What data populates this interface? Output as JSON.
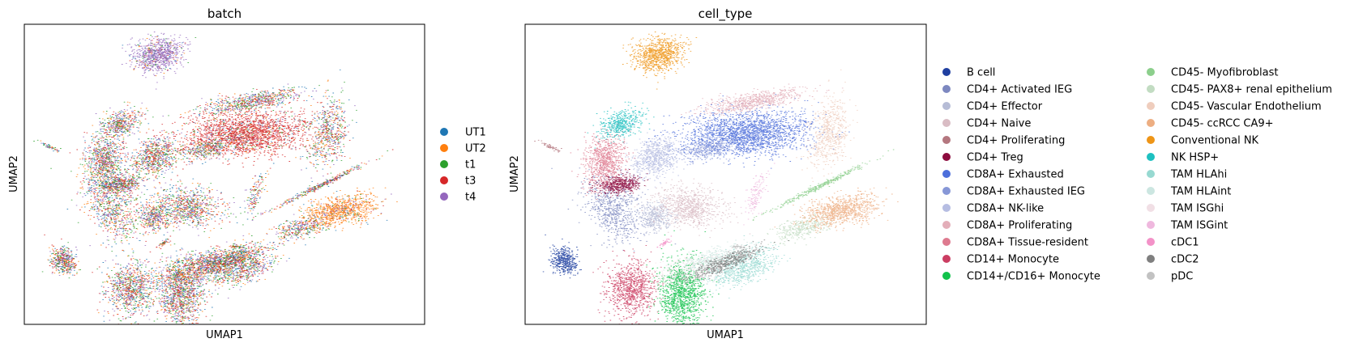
{
  "chart_data": [
    {
      "type": "scatter",
      "title": "batch",
      "xlabel": "UMAP1",
      "ylabel": "UMAP2",
      "xticks": [],
      "yticks": [],
      "grid": false,
      "legend_position": "right",
      "series": [
        {
          "name": "UT1",
          "color": "#1f77b4"
        },
        {
          "name": "UT2",
          "color": "#ff7f0e"
        },
        {
          "name": "t1",
          "color": "#2ca02c"
        },
        {
          "name": "t3",
          "color": "#d62728"
        },
        {
          "name": "t4",
          "color": "#9467bd"
        }
      ]
    },
    {
      "type": "scatter",
      "title": "cell_type",
      "xlabel": "UMAP1",
      "ylabel": "UMAP2",
      "xticks": [],
      "yticks": [],
      "grid": false,
      "legend_position": "right",
      "series": [
        {
          "name": "B cell",
          "color": "#1f3fa0"
        },
        {
          "name": "CD4+ Activated IEG",
          "color": "#7d88c0"
        },
        {
          "name": "CD4+ Effector",
          "color": "#b6bcd6"
        },
        {
          "name": "CD4+ Naive",
          "color": "#d9bcc4"
        },
        {
          "name": "CD4+ Proliferating",
          "color": "#b4777f"
        },
        {
          "name": "CD4+ Treg",
          "color": "#8c0b3e"
        },
        {
          "name": "CD8A+ Exhausted",
          "color": "#4d6fdb"
        },
        {
          "name": "CD8A+ Exhausted IEG",
          "color": "#8797d7"
        },
        {
          "name": "CD8A+ NK-like",
          "color": "#b6bde2"
        },
        {
          "name": "CD8A+ Proliferating",
          "color": "#e3aeb9"
        },
        {
          "name": "CD8A+ Tissue-resident",
          "color": "#de7a8f"
        },
        {
          "name": "CD14+ Monocyte",
          "color": "#cb3d62"
        },
        {
          "name": "CD14+/CD16+ Monocyte",
          "color": "#12c24b"
        },
        {
          "name": "CD45- Myofibroblast",
          "color": "#8ccf8c"
        },
        {
          "name": "CD45- PAX8+ renal epithelium",
          "color": "#c2dcc2"
        },
        {
          "name": "CD45- Vascular Endothelium",
          "color": "#efcdbd"
        },
        {
          "name": "CD45- ccRCC CA9+",
          "color": "#edae82"
        },
        {
          "name": "Conventional NK",
          "color": "#ee9517"
        },
        {
          "name": "NK HSP+",
          "color": "#1ec0c0"
        },
        {
          "name": "TAM HLAhi",
          "color": "#97d9d1"
        },
        {
          "name": "TAM HLAint",
          "color": "#cce6e1"
        },
        {
          "name": "TAM ISGhi",
          "color": "#f1dfe5"
        },
        {
          "name": "TAM ISGint",
          "color": "#efb8de"
        },
        {
          "name": "cDC1",
          "color": "#f392c8"
        },
        {
          "name": "cDC2",
          "color": "#7f7f7f"
        },
        {
          "name": "pDC",
          "color": "#c2c2c2"
        }
      ]
    }
  ]
}
